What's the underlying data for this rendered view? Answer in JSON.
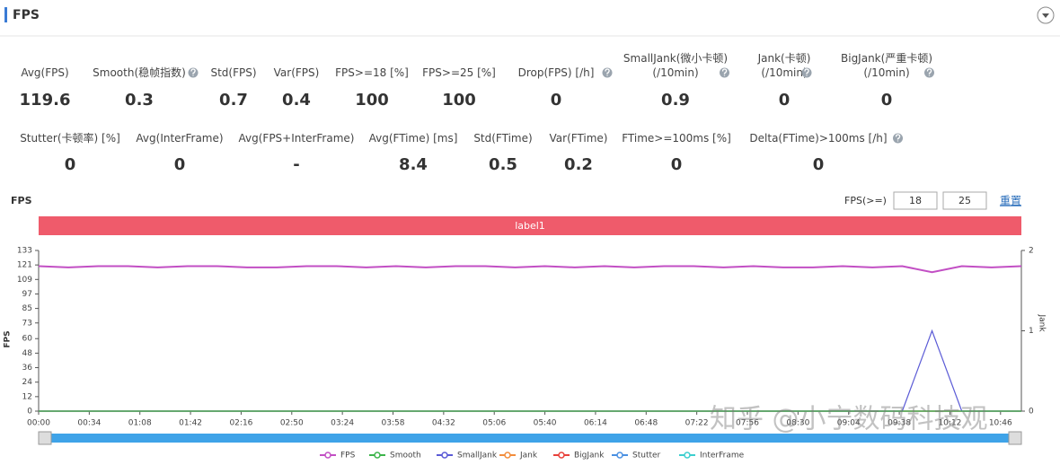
{
  "header": {
    "title": "FPS"
  },
  "metrics": {
    "rows": [
      [
        {
          "label": "Avg(FPS)",
          "value": "119.6"
        },
        {
          "label": "Smooth(稳帧指数)",
          "value": "0.3",
          "help": true
        },
        {
          "label": "Std(FPS)",
          "value": "0.7"
        },
        {
          "label": "Var(FPS)",
          "value": "0.4"
        },
        {
          "label": "FPS>=18 [%]",
          "value": "100"
        },
        {
          "label": "FPS>=25 [%]",
          "value": "100"
        },
        {
          "label": "Drop(FPS) [/h]",
          "value": "0",
          "help": true
        },
        {
          "label": "SmallJank(微小卡顿)\n(/10min)",
          "value": "0.9",
          "help": true
        },
        {
          "label": "Jank(卡顿)\n(/10min)",
          "value": "0",
          "help": true
        },
        {
          "label": "BigJank(严重卡顿)\n(/10min)",
          "value": "0",
          "help": true
        }
      ],
      [
        {
          "label": "Stutter(卡顿率) [%]",
          "value": "0"
        },
        {
          "label": "Avg(InterFrame)",
          "value": "0"
        },
        {
          "label": "Avg(FPS+InterFrame)",
          "value": "-"
        },
        {
          "label": "Avg(FTime) [ms]",
          "value": "8.4"
        },
        {
          "label": "Std(FTime)",
          "value": "0.5"
        },
        {
          "label": "Var(FTime)",
          "value": "0.2"
        },
        {
          "label": "FTime>=100ms [%]",
          "value": "0"
        },
        {
          "label": "Delta(FTime)>100ms [/h]",
          "value": "0",
          "help": true
        }
      ]
    ]
  },
  "controls": {
    "label": "FPS(>=)",
    "inputs": [
      "18",
      "25"
    ],
    "reset": "重置"
  },
  "watermark": "知乎 @小宁数码科技观",
  "chart_data": {
    "type": "line",
    "title": "FPS",
    "band_label": "label1",
    "ylabel": "FPS",
    "y2label": "Jank",
    "x": [
      0,
      20,
      40,
      60,
      80,
      100,
      120,
      140,
      160,
      180,
      200,
      220,
      240,
      260,
      280,
      300,
      320,
      340,
      360,
      380,
      400,
      420,
      440,
      460,
      480,
      500,
      520,
      540,
      560,
      580,
      600,
      620,
      640,
      660
    ],
    "xlim": [
      0,
      660
    ],
    "xticks": [
      {
        "value": 0,
        "label": "00:00"
      },
      {
        "value": 34,
        "label": "00:34"
      },
      {
        "value": 68,
        "label": "01:08"
      },
      {
        "value": 102,
        "label": "01:42"
      },
      {
        "value": 136,
        "label": "02:16"
      },
      {
        "value": 170,
        "label": "02:50"
      },
      {
        "value": 204,
        "label": "03:24"
      },
      {
        "value": 238,
        "label": "03:58"
      },
      {
        "value": 272,
        "label": "04:32"
      },
      {
        "value": 306,
        "label": "05:06"
      },
      {
        "value": 340,
        "label": "05:40"
      },
      {
        "value": 374,
        "label": "06:14"
      },
      {
        "value": 408,
        "label": "06:48"
      },
      {
        "value": 442,
        "label": "07:22"
      },
      {
        "value": 476,
        "label": "07:56"
      },
      {
        "value": 510,
        "label": "08:30"
      },
      {
        "value": 544,
        "label": "09:04"
      },
      {
        "value": 578,
        "label": "09:38"
      },
      {
        "value": 612,
        "label": "10:12"
      },
      {
        "value": 646,
        "label": "10:46"
      }
    ],
    "ylim": [
      0,
      133
    ],
    "yticks": [
      0,
      12,
      24,
      36,
      48,
      60,
      73,
      85,
      97,
      109,
      121,
      133
    ],
    "y2lim": [
      0,
      2
    ],
    "y2ticks": [
      0,
      1,
      2
    ],
    "grid": false,
    "series": [
      {
        "name": "FPS",
        "color": "#c24fc4",
        "values": [
          120,
          119,
          120,
          120,
          119,
          120,
          120,
          119,
          119,
          120,
          120,
          119,
          120,
          119,
          120,
          120,
          119,
          120,
          119,
          120,
          119,
          120,
          120,
          119,
          120,
          119,
          119,
          120,
          119,
          120,
          115,
          120,
          119,
          120
        ]
      },
      {
        "name": "Smooth",
        "color": "#3cb44b",
        "axis": "y2",
        "values": [
          0,
          0,
          0,
          0,
          0,
          0,
          0,
          0,
          0,
          0,
          0,
          0,
          0,
          0,
          0,
          0,
          0,
          0,
          0,
          0,
          0,
          0,
          0,
          0,
          0,
          0,
          0,
          0,
          0,
          0,
          0,
          0,
          0,
          0
        ]
      },
      {
        "name": "SmallJank",
        "color": "#5b5bd6",
        "axis": "y2",
        "values": [
          0,
          0,
          0,
          0,
          0,
          0,
          0,
          0,
          0,
          0,
          0,
          0,
          0,
          0,
          0,
          0,
          0,
          0,
          0,
          0,
          0,
          0,
          0,
          0,
          0,
          0,
          0,
          0,
          0,
          0,
          1,
          0,
          0,
          0
        ]
      },
      {
        "name": "Jank",
        "color": "#f28d3c",
        "axis": "y2",
        "values": [
          0,
          0,
          0,
          0,
          0,
          0,
          0,
          0,
          0,
          0,
          0,
          0,
          0,
          0,
          0,
          0,
          0,
          0,
          0,
          0,
          0,
          0,
          0,
          0,
          0,
          0,
          0,
          0,
          0,
          0,
          0,
          0,
          0,
          0
        ]
      },
      {
        "name": "BigJank",
        "color": "#e8413b",
        "axis": "y2",
        "values": [
          0,
          0,
          0,
          0,
          0,
          0,
          0,
          0,
          0,
          0,
          0,
          0,
          0,
          0,
          0,
          0,
          0,
          0,
          0,
          0,
          0,
          0,
          0,
          0,
          0,
          0,
          0,
          0,
          0,
          0,
          0,
          0,
          0,
          0
        ]
      },
      {
        "name": "Stutter",
        "color": "#4a90e2",
        "axis": "y2",
        "values": [
          0,
          0,
          0,
          0,
          0,
          0,
          0,
          0,
          0,
          0,
          0,
          0,
          0,
          0,
          0,
          0,
          0,
          0,
          0,
          0,
          0,
          0,
          0,
          0,
          0,
          0,
          0,
          0,
          0,
          0,
          0,
          0,
          0,
          0
        ]
      },
      {
        "name": "InterFrame",
        "color": "#3ccfcf",
        "axis": "y2",
        "values": [
          0,
          0,
          0,
          0,
          0,
          0,
          0,
          0,
          0,
          0,
          0,
          0,
          0,
          0,
          0,
          0,
          0,
          0,
          0,
          0,
          0,
          0,
          0,
          0,
          0,
          0,
          0,
          0,
          0,
          0,
          0,
          0,
          0,
          0
        ]
      }
    ]
  }
}
